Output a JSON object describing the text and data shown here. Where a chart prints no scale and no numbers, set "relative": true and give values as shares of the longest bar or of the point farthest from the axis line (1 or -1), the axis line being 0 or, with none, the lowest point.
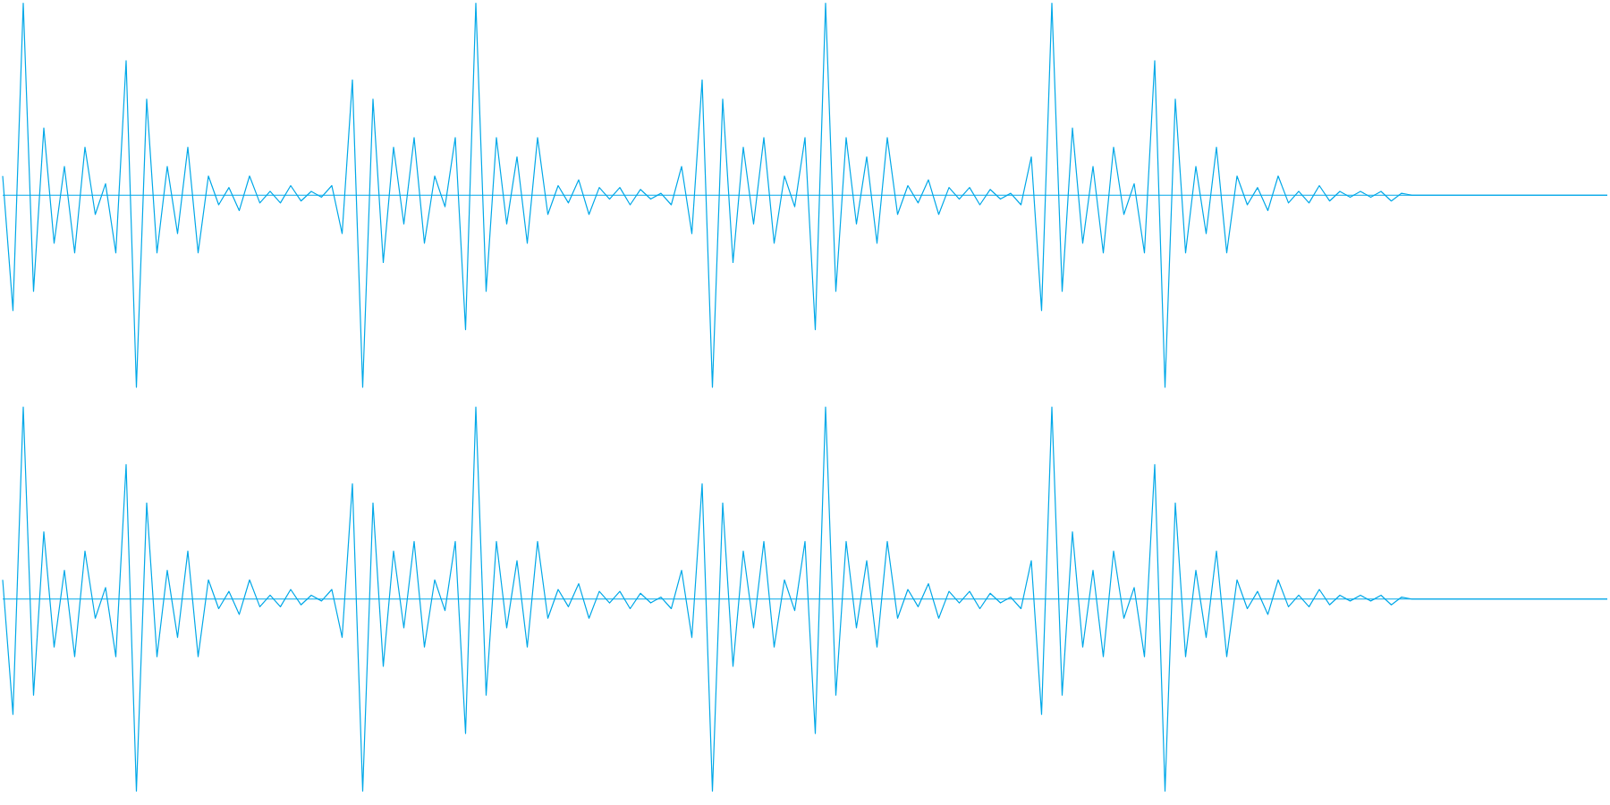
{
  "chart_data": [
    {
      "type": "line",
      "relative": true,
      "ref_lines": [
        {
          "axis": "y",
          "value": 0,
          "color": "#00a8e8"
        }
      ],
      "categories": [
        null,
        null,
        null,
        null,
        null,
        null,
        null,
        null,
        null,
        null,
        null,
        null,
        null,
        null,
        null,
        null,
        null,
        null,
        null,
        null,
        null,
        null,
        null,
        null,
        null,
        null,
        null,
        null,
        null,
        null,
        null,
        null,
        null,
        null,
        null,
        null,
        null,
        null,
        null,
        null,
        null,
        null,
        null,
        null,
        null,
        null,
        null,
        null,
        null,
        null,
        null,
        null,
        null,
        null,
        null,
        null,
        null,
        null,
        null,
        null,
        null,
        null,
        null,
        null,
        null,
        null,
        null,
        null,
        null,
        null,
        null,
        null,
        null,
        null,
        null,
        null,
        null,
        null,
        null,
        null,
        null,
        null,
        null,
        null,
        null,
        null,
        null,
        null,
        null,
        null,
        null,
        null,
        null,
        null,
        null,
        null,
        null,
        null,
        null,
        null,
        null,
        null,
        null,
        null,
        null,
        null,
        null,
        null,
        null,
        null,
        null,
        null,
        null,
        null,
        null,
        null,
        null,
        null,
        null,
        null,
        null,
        null,
        null,
        null,
        null,
        null,
        null,
        null,
        null,
        null,
        null,
        null,
        null,
        null,
        null,
        null,
        null,
        null,
        null,
        null,
        null,
        null,
        null,
        null,
        null,
        null,
        null,
        null,
        null,
        null,
        null,
        null,
        null,
        null,
        null,
        null,
        null
      ],
      "series": [
        {
          "color": "#00a8e8",
          "values": [
            0.1,
            -0.6,
            1,
            -0.5,
            0.35,
            -0.25,
            0.15,
            -0.3,
            0.25,
            -0.1,
            0.06,
            -0.3,
            0.7,
            -1,
            0.5,
            -0.3,
            0.15,
            -0.2,
            0.25,
            -0.3,
            0.1,
            -0.05,
            0.04,
            -0.08,
            0.1,
            -0.04,
            0.02,
            -0.04,
            0.05,
            -0.03,
            0.02,
            -0.01,
            0.05,
            -0.2,
            0.6,
            -1,
            0.5,
            -0.35,
            0.25,
            -0.15,
            0.3,
            -0.25,
            0.1,
            -0.06,
            0.3,
            -0.7,
            1,
            -0.5,
            0.3,
            -0.15,
            0.2,
            -0.25,
            0.3,
            -0.1,
            0.05,
            -0.04,
            0.08,
            -0.1,
            0.04,
            -0.02,
            0.04,
            -0.05,
            0.03,
            -0.02,
            0.01,
            -0.05,
            0.15,
            -0.2,
            0.6,
            -1,
            0.5,
            -0.35,
            0.25,
            -0.15,
            0.3,
            -0.25,
            0.1,
            -0.06,
            0.3,
            -0.7,
            1,
            -0.5,
            0.3,
            -0.15,
            0.2,
            -0.25,
            0.3,
            -0.1,
            0.05,
            -0.04,
            0.08,
            -0.1,
            0.04,
            -0.02,
            0.04,
            -0.05,
            0.03,
            -0.02,
            0.01,
            -0.05,
            0.2,
            -0.6,
            1,
            -0.5,
            0.35,
            -0.25,
            0.15,
            -0.3,
            0.25,
            -0.1,
            0.06,
            -0.3,
            0.7,
            -1,
            0.5,
            -0.3,
            0.15,
            -0.2,
            0.25,
            -0.3,
            0.1,
            -0.05,
            0.04,
            -0.08,
            0.1,
            -0.04,
            0.02,
            -0.04,
            0.05,
            -0.03,
            0.02,
            -0.01,
            0.02,
            -0.01,
            0.02,
            -0.03,
            0.01,
            0,
            0,
            0,
            0,
            0,
            0,
            0,
            0,
            0,
            0,
            0,
            0,
            0,
            0,
            0,
            0,
            0,
            0,
            0,
            0
          ]
        }
      ]
    },
    {
      "type": "line",
      "relative": true,
      "ref_lines": [
        {
          "axis": "y",
          "value": 0,
          "color": "#00a8e8"
        }
      ],
      "categories": [
        null,
        null,
        null,
        null,
        null,
        null,
        null,
        null,
        null,
        null,
        null,
        null,
        null,
        null,
        null,
        null,
        null,
        null,
        null,
        null,
        null,
        null,
        null,
        null,
        null,
        null,
        null,
        null,
        null,
        null,
        null,
        null,
        null,
        null,
        null,
        null,
        null,
        null,
        null,
        null,
        null,
        null,
        null,
        null,
        null,
        null,
        null,
        null,
        null,
        null,
        null,
        null,
        null,
        null,
        null,
        null,
        null,
        null,
        null,
        null,
        null,
        null,
        null,
        null,
        null,
        null,
        null,
        null,
        null,
        null,
        null,
        null,
        null,
        null,
        null,
        null,
        null,
        null,
        null,
        null,
        null,
        null,
        null,
        null,
        null,
        null,
        null,
        null,
        null,
        null,
        null,
        null,
        null,
        null,
        null,
        null,
        null,
        null,
        null,
        null,
        null,
        null,
        null,
        null,
        null,
        null,
        null,
        null,
        null,
        null,
        null,
        null,
        null,
        null,
        null,
        null,
        null,
        null,
        null,
        null,
        null,
        null,
        null,
        null,
        null,
        null,
        null,
        null,
        null,
        null,
        null,
        null,
        null,
        null,
        null,
        null,
        null,
        null,
        null,
        null,
        null,
        null,
        null,
        null,
        null,
        null,
        null,
        null,
        null,
        null,
        null,
        null,
        null,
        null,
        null,
        null,
        null
      ],
      "series": [
        {
          "color": "#00a8e8",
          "values": [
            0.1,
            -0.6,
            1,
            -0.5,
            0.35,
            -0.25,
            0.15,
            -0.3,
            0.25,
            -0.1,
            0.06,
            -0.3,
            0.7,
            -1,
            0.5,
            -0.3,
            0.15,
            -0.2,
            0.25,
            -0.3,
            0.1,
            -0.05,
            0.04,
            -0.08,
            0.1,
            -0.04,
            0.02,
            -0.04,
            0.05,
            -0.03,
            0.02,
            -0.01,
            0.05,
            -0.2,
            0.6,
            -1,
            0.5,
            -0.35,
            0.25,
            -0.15,
            0.3,
            -0.25,
            0.1,
            -0.06,
            0.3,
            -0.7,
            1,
            -0.5,
            0.3,
            -0.15,
            0.2,
            -0.25,
            0.3,
            -0.1,
            0.05,
            -0.04,
            0.08,
            -0.1,
            0.04,
            -0.02,
            0.04,
            -0.05,
            0.03,
            -0.02,
            0.01,
            -0.05,
            0.15,
            -0.2,
            0.6,
            -1,
            0.5,
            -0.35,
            0.25,
            -0.15,
            0.3,
            -0.25,
            0.1,
            -0.06,
            0.3,
            -0.7,
            1,
            -0.5,
            0.3,
            -0.15,
            0.2,
            -0.25,
            0.3,
            -0.1,
            0.05,
            -0.04,
            0.08,
            -0.1,
            0.04,
            -0.02,
            0.04,
            -0.05,
            0.03,
            -0.02,
            0.01,
            -0.05,
            0.2,
            -0.6,
            1,
            -0.5,
            0.35,
            -0.25,
            0.15,
            -0.3,
            0.25,
            -0.1,
            0.06,
            -0.3,
            0.7,
            -1,
            0.5,
            -0.3,
            0.15,
            -0.2,
            0.25,
            -0.3,
            0.1,
            -0.05,
            0.04,
            -0.08,
            0.1,
            -0.04,
            0.02,
            -0.04,
            0.05,
            -0.03,
            0.02,
            -0.01,
            0.02,
            -0.01,
            0.02,
            -0.03,
            0.01,
            0,
            0,
            0,
            0,
            0,
            0,
            0,
            0,
            0,
            0,
            0,
            0,
            0,
            0,
            0,
            0,
            0,
            0,
            0,
            0
          ]
        }
      ]
    }
  ]
}
